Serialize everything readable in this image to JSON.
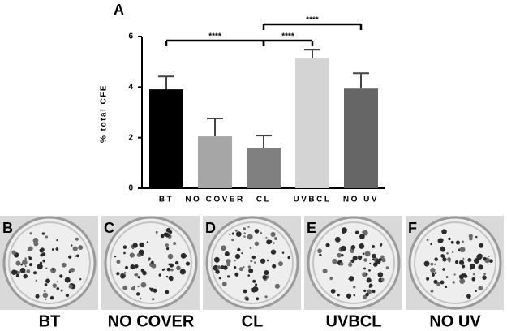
{
  "chart_data": {
    "type": "bar",
    "panel_label": "A",
    "ylabel": "% total CFE",
    "categories": [
      "BT",
      "NO COVER",
      "CL",
      "UVBCL",
      "NO UV"
    ],
    "values": [
      3.91,
      2.05,
      1.6,
      5.13,
      3.94
    ],
    "errors": [
      0.51,
      0.71,
      0.48,
      0.35,
      0.61
    ],
    "colors": [
      "#000000",
      "#a6a6a6",
      "#808080",
      "#d4d4d4",
      "#666666"
    ],
    "ylim": [
      0,
      6
    ],
    "yticks": [
      0,
      2,
      4,
      6
    ],
    "significance": [
      {
        "from": 0,
        "to": 2,
        "label": "****"
      },
      {
        "from": 2,
        "to": 3,
        "label": "****"
      },
      {
        "from": 2,
        "to": 4,
        "label": "****"
      }
    ]
  },
  "panels": [
    {
      "letter": "B",
      "label": "BT"
    },
    {
      "letter": "C",
      "label": "NO COVER"
    },
    {
      "letter": "D",
      "label": "CL"
    },
    {
      "letter": "E",
      "label": "UVBCL"
    },
    {
      "letter": "F",
      "label": "NO UV"
    }
  ]
}
